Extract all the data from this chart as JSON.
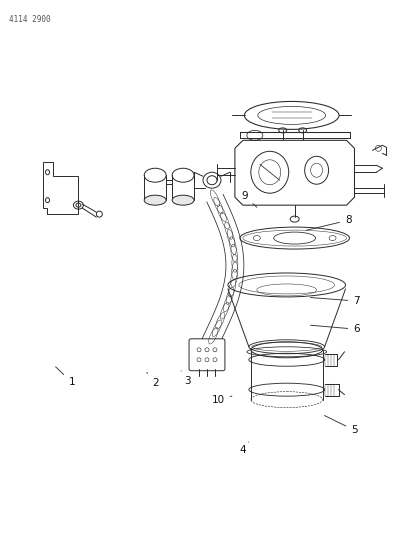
{
  "top_left_text": "4114 2900",
  "background_color": "#ffffff",
  "line_color": "#2a2a2a",
  "figsize": [
    4.08,
    5.33
  ],
  "dpi": 100,
  "labels_data": {
    "1": [
      0.175,
      0.718,
      0.13,
      0.685
    ],
    "2": [
      0.38,
      0.72,
      0.355,
      0.695
    ],
    "3": [
      0.46,
      0.716,
      0.44,
      0.692
    ],
    "4": [
      0.595,
      0.845,
      0.61,
      0.83
    ],
    "5": [
      0.87,
      0.808,
      0.79,
      0.778
    ],
    "6": [
      0.875,
      0.618,
      0.755,
      0.61
    ],
    "7": [
      0.875,
      0.565,
      0.755,
      0.558
    ],
    "8": [
      0.855,
      0.413,
      0.745,
      0.433
    ],
    "9": [
      0.6,
      0.368,
      0.635,
      0.392
    ],
    "10": [
      0.535,
      0.752,
      0.575,
      0.742
    ]
  }
}
